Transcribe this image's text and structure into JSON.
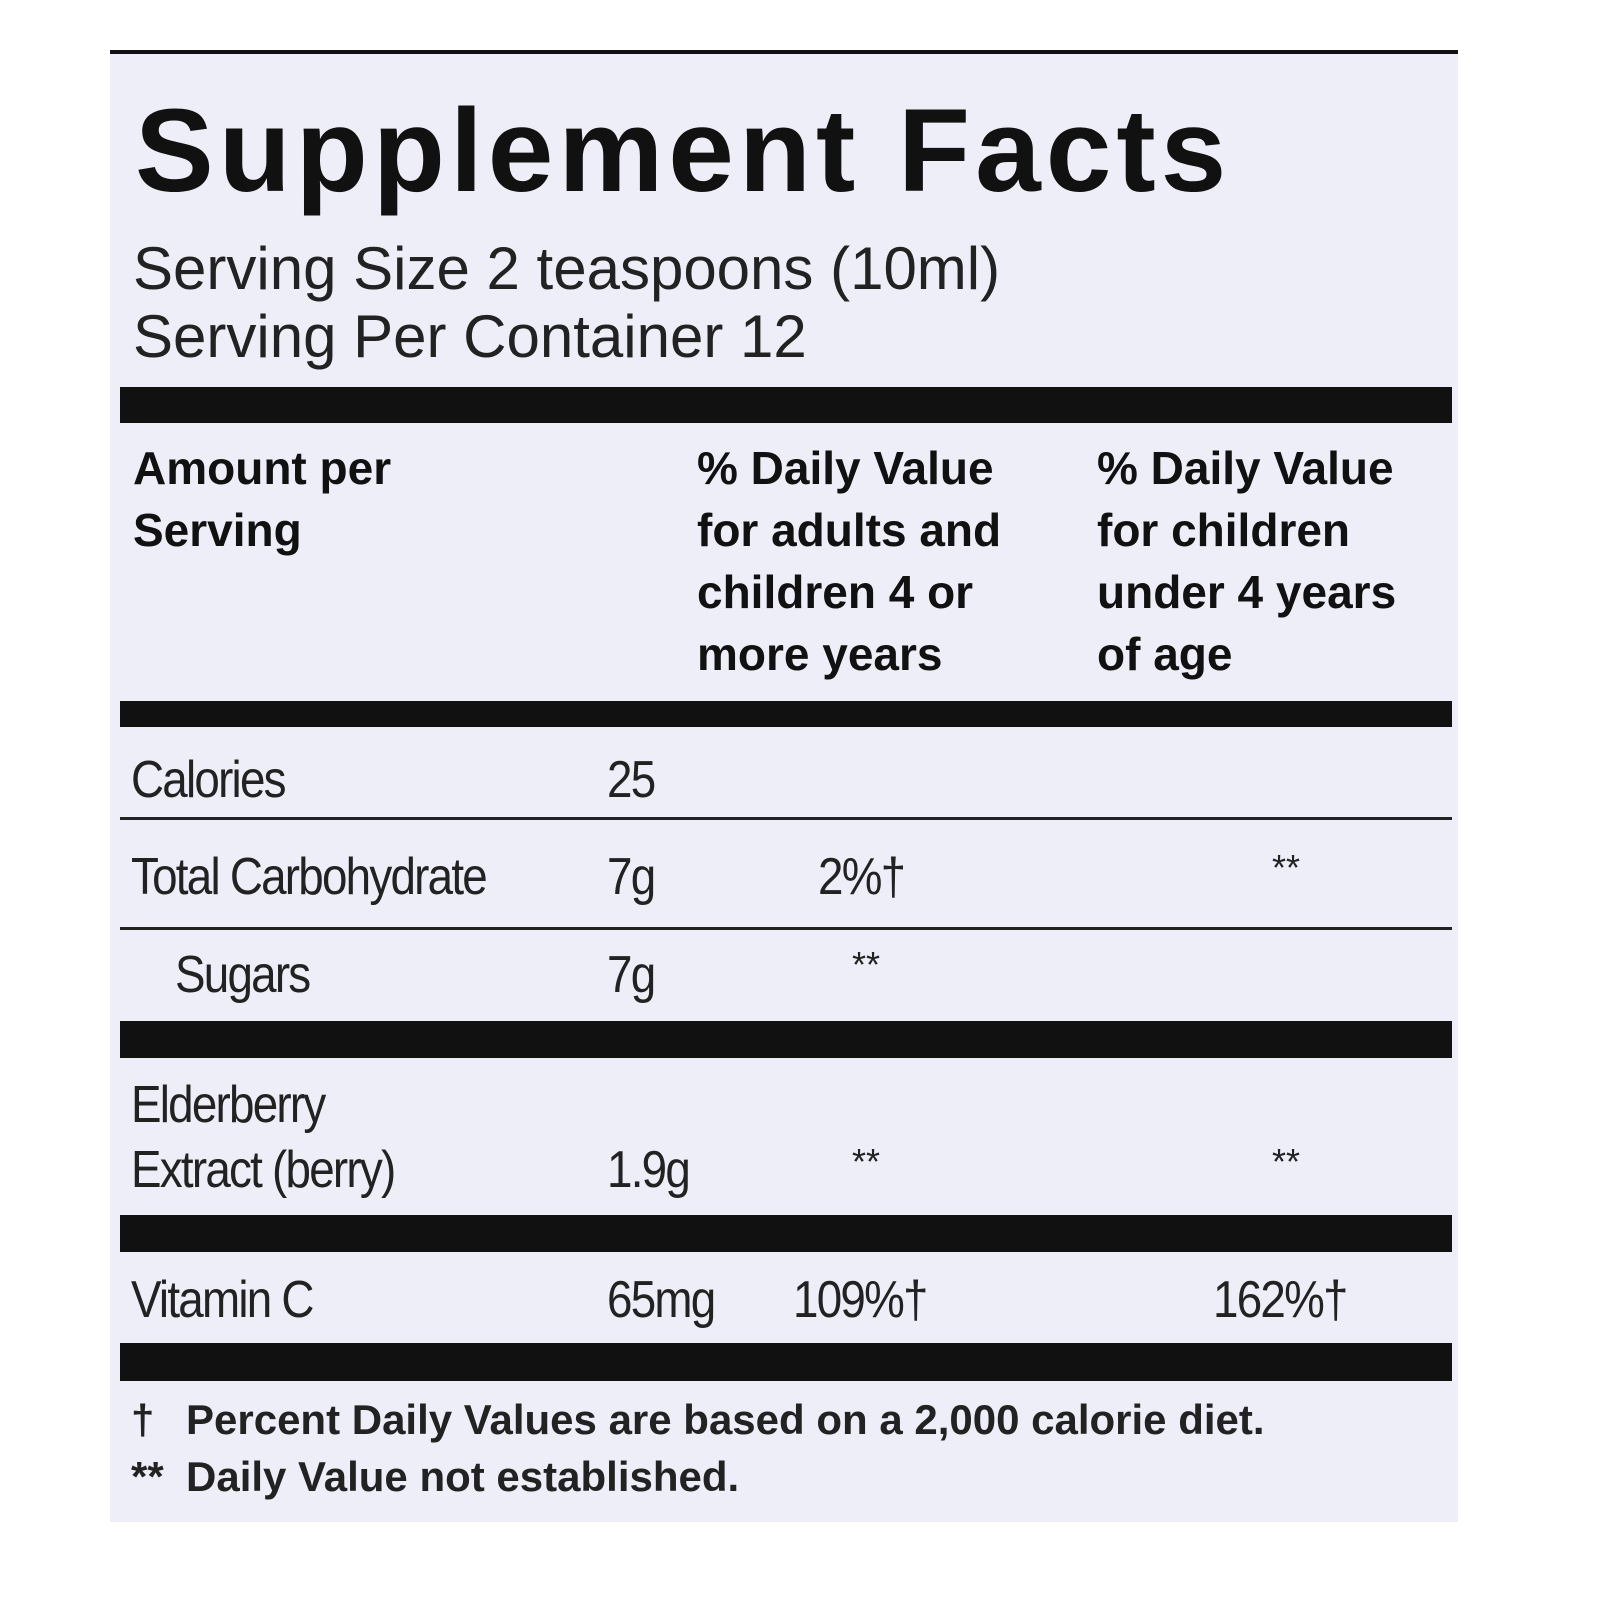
{
  "title": "Supplement Facts",
  "serving_size": "Serving Size 2 teaspoons (10ml)",
  "servings_per_container": "Serving Per Container 12",
  "table": {
    "header": {
      "amount": [
        "Amount per",
        "Serving"
      ],
      "dv_adults": [
        "% Daily Value",
        "for adults and",
        "children 4 or",
        "more years"
      ],
      "dv_children": [
        "% Daily Value",
        "for children",
        "under 4 years",
        "of age"
      ]
    },
    "rows": [
      {
        "name": [
          "Calories"
        ],
        "amount": "25"
      },
      {
        "name": [
          "Total Carbohydrate"
        ],
        "amount": "7g",
        "dv_adults": "2%†",
        "dv_children": "**"
      },
      {
        "name": [
          "Sugars"
        ],
        "amount": "7g",
        "dv_adults": "**"
      },
      {
        "name": [
          "Elderberry",
          "Extract (berry)"
        ],
        "amount": "1.9g",
        "dv_adults": "**",
        "dv_children": "**"
      },
      {
        "name": [
          "Vitamin C"
        ],
        "amount": "65mg",
        "dv_adults": "109%†",
        "dv_children": "162%†"
      }
    ]
  },
  "footnotes": [
    {
      "mark": "†",
      "text": "Percent Daily Values are based on a 2,000 calorie diet."
    },
    {
      "mark": "**",
      "text": "Daily Value not established."
    }
  ]
}
